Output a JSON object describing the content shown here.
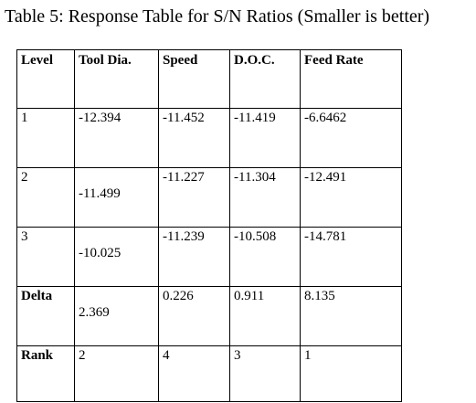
{
  "caption": "Table 5: Response Table for S/N Ratios (Smaller is better)",
  "table": {
    "headers": [
      "Level",
      "Tool Dia.",
      "Speed",
      "D.O.C.",
      "Feed Rate"
    ],
    "rows": [
      [
        "1",
        "-12.394",
        "-11.452",
        "-11.419",
        "-6.6462"
      ],
      [
        "2",
        "-11.499",
        "-11.227",
        "-11.304",
        "-12.491"
      ],
      [
        "3",
        "-10.025",
        "-11.239",
        "-10.508",
        "-14.781"
      ],
      [
        "Delta",
        "2.369",
        "0.226",
        "0.911",
        "8.135"
      ],
      [
        "Rank",
        "2",
        "4",
        "3",
        "1"
      ]
    ]
  }
}
